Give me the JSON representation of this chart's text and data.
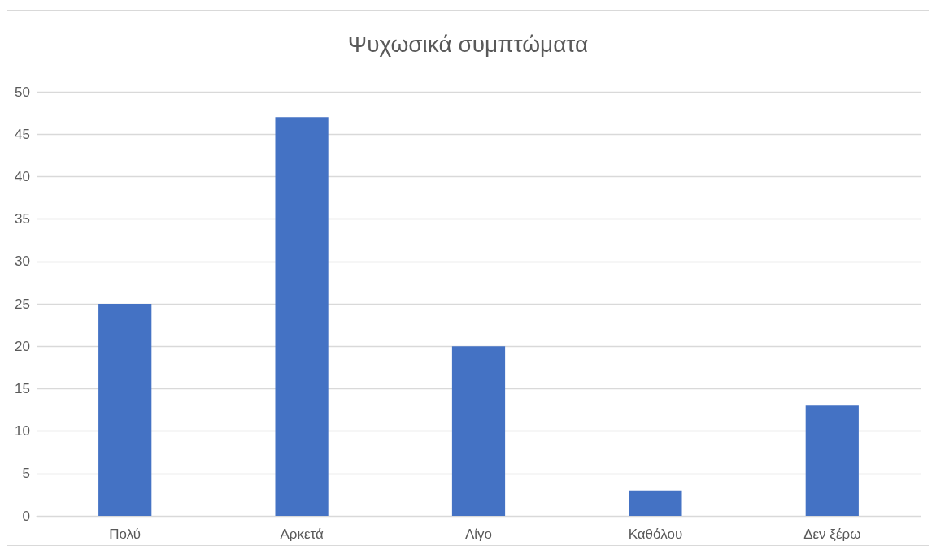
{
  "chart_data": {
    "type": "bar",
    "title": "Ψυχωσικά συμπτώματα",
    "categories": [
      "Πολύ",
      "Αρκετά",
      "Λίγο",
      "Καθόλου",
      "Δεν ξέρω"
    ],
    "values": [
      25,
      47,
      20,
      3,
      13
    ],
    "color": "#4472c4",
    "ylim": [
      0,
      50
    ],
    "yticks": [
      0,
      5,
      10,
      15,
      20,
      25,
      30,
      35,
      40,
      45,
      50
    ],
    "grid": "y"
  }
}
